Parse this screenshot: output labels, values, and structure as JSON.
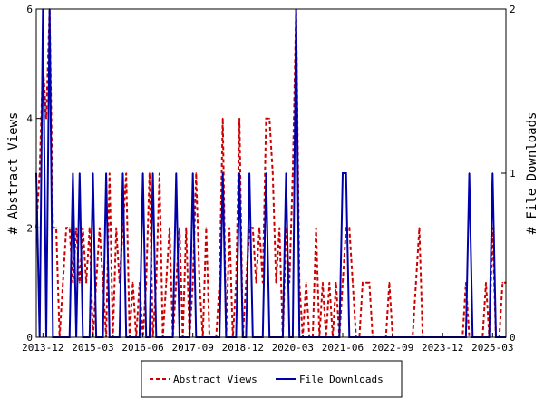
{
  "chart_data": {
    "type": "line",
    "ylabel_left": "# Abstract Views",
    "ylabel_right": "# File Downloads",
    "x_range": [
      "2013-10",
      "2025-07"
    ],
    "x_ticks": [
      "2013-12",
      "2015-03",
      "2016-06",
      "2017-09",
      "2018-12",
      "2020-03",
      "2021-06",
      "2022-09",
      "2023-12",
      "2025-03"
    ],
    "y_left": {
      "min": 0,
      "max": 6,
      "ticks": [
        "0",
        "2",
        "4",
        "6"
      ]
    },
    "y_right": {
      "min": 0,
      "max": 2,
      "ticks": [
        "0",
        "1",
        "2"
      ]
    },
    "legend": {
      "placement": "bottom"
    },
    "series": [
      {
        "name": "Abstract Views",
        "axis": "left",
        "color": "#cc0000",
        "dash": "dashed",
        "points": [
          [
            "2013-10",
            2
          ],
          [
            "2013-11",
            3
          ],
          [
            "2013-12",
            5
          ],
          [
            "2014-01",
            4
          ],
          [
            "2014-02",
            6
          ],
          [
            "2014-03",
            2
          ],
          [
            "2014-04",
            2
          ],
          [
            "2014-05",
            0
          ],
          [
            "2014-06",
            1
          ],
          [
            "2014-07",
            2
          ],
          [
            "2014-08",
            2
          ],
          [
            "2014-09",
            1
          ],
          [
            "2014-10",
            2
          ],
          [
            "2014-11",
            1
          ],
          [
            "2014-12",
            2
          ],
          [
            "2015-01",
            1
          ],
          [
            "2015-02",
            2
          ],
          [
            "2015-03",
            0
          ],
          [
            "2015-04",
            1
          ],
          [
            "2015-05",
            2
          ],
          [
            "2015-06",
            1
          ],
          [
            "2015-07",
            0
          ],
          [
            "2015-08",
            3
          ],
          [
            "2015-09",
            0
          ],
          [
            "2015-10",
            2
          ],
          [
            "2015-11",
            1
          ],
          [
            "2015-12",
            2
          ],
          [
            "2016-01",
            3
          ],
          [
            "2016-02",
            0
          ],
          [
            "2016-03",
            1
          ],
          [
            "2016-04",
            0
          ],
          [
            "2016-05",
            1
          ],
          [
            "2016-06",
            0
          ],
          [
            "2016-07",
            1
          ],
          [
            "2016-08",
            3
          ],
          [
            "2016-09",
            0
          ],
          [
            "2016-10",
            1
          ],
          [
            "2016-11",
            3
          ],
          [
            "2016-12",
            0
          ],
          [
            "2017-01",
            1
          ],
          [
            "2017-02",
            2
          ],
          [
            "2017-03",
            0
          ],
          [
            "2017-04",
            1
          ],
          [
            "2017-05",
            2
          ],
          [
            "2017-06",
            0
          ],
          [
            "2017-07",
            2
          ],
          [
            "2017-08",
            0
          ],
          [
            "2017-09",
            1
          ],
          [
            "2017-10",
            3
          ],
          [
            "2017-11",
            1
          ],
          [
            "2017-12",
            0
          ],
          [
            "2018-01",
            2
          ],
          [
            "2018-02",
            0
          ],
          [
            "2018-03",
            0
          ],
          [
            "2018-04",
            0
          ],
          [
            "2018-05",
            1
          ],
          [
            "2018-06",
            4
          ],
          [
            "2018-07",
            0
          ],
          [
            "2018-08",
            2
          ],
          [
            "2018-09",
            0
          ],
          [
            "2018-10",
            1
          ],
          [
            "2018-11",
            4
          ],
          [
            "2018-12",
            0
          ],
          [
            "2019-01",
            1
          ],
          [
            "2019-02",
            2
          ],
          [
            "2019-03",
            2
          ],
          [
            "2019-04",
            1
          ],
          [
            "2019-05",
            2
          ],
          [
            "2019-06",
            1
          ],
          [
            "2019-07",
            4
          ],
          [
            "2019-08",
            4
          ],
          [
            "2019-09",
            3
          ],
          [
            "2019-10",
            1
          ],
          [
            "2019-11",
            2
          ],
          [
            "2019-12",
            0
          ],
          [
            "2020-01",
            2
          ],
          [
            "2020-02",
            1
          ],
          [
            "2020-03",
            3
          ],
          [
            "2020-04",
            6
          ],
          [
            "2020-05",
            1
          ],
          [
            "2020-06",
            0
          ],
          [
            "2020-07",
            1
          ],
          [
            "2020-08",
            0
          ],
          [
            "2020-09",
            0
          ],
          [
            "2020-10",
            2
          ],
          [
            "2020-11",
            0
          ],
          [
            "2020-12",
            1
          ],
          [
            "2021-01",
            0
          ],
          [
            "2021-02",
            1
          ],
          [
            "2021-03",
            0
          ],
          [
            "2021-04",
            1
          ],
          [
            "2021-05",
            0
          ],
          [
            "2021-06",
            1
          ],
          [
            "2021-07",
            2
          ],
          [
            "2021-08",
            2
          ],
          [
            "2021-09",
            1
          ],
          [
            "2021-10",
            0
          ],
          [
            "2021-11",
            0
          ],
          [
            "2021-12",
            1
          ],
          [
            "2022-01",
            1
          ],
          [
            "2022-02",
            1
          ],
          [
            "2022-03",
            0
          ],
          [
            "2022-04",
            0
          ],
          [
            "2022-05",
            0
          ],
          [
            "2022-06",
            0
          ],
          [
            "2022-07",
            0
          ],
          [
            "2022-08",
            1
          ],
          [
            "2022-09",
            0
          ],
          [
            "2022-10",
            0
          ],
          [
            "2022-11",
            0
          ],
          [
            "2022-12",
            0
          ],
          [
            "2023-01",
            0
          ],
          [
            "2023-02",
            0
          ],
          [
            "2023-03",
            0
          ],
          [
            "2023-04",
            1
          ],
          [
            "2023-05",
            2
          ],
          [
            "2023-06",
            0
          ],
          [
            "2023-07",
            0
          ],
          [
            "2023-08",
            0
          ],
          [
            "2023-09",
            0
          ],
          [
            "2023-10",
            0
          ],
          [
            "2023-11",
            0
          ],
          [
            "2023-12",
            0
          ],
          [
            "2024-01",
            0
          ],
          [
            "2024-02",
            0
          ],
          [
            "2024-03",
            0
          ],
          [
            "2024-04",
            0
          ],
          [
            "2024-05",
            0
          ],
          [
            "2024-06",
            0
          ],
          [
            "2024-07",
            1
          ],
          [
            "2024-08",
            0
          ],
          [
            "2024-09",
            0
          ],
          [
            "2024-10",
            0
          ],
          [
            "2024-11",
            0
          ],
          [
            "2024-12",
            0
          ],
          [
            "2025-01",
            1
          ],
          [
            "2025-02",
            0
          ],
          [
            "2025-03",
            2
          ],
          [
            "2025-04",
            0
          ],
          [
            "2025-05",
            0
          ],
          [
            "2025-06",
            1
          ],
          [
            "2025-07",
            1
          ]
        ]
      },
      {
        "name": "File Downloads",
        "axis": "right",
        "color": "#0000aa",
        "dash": "solid",
        "points": [
          [
            "2013-10",
            1
          ],
          [
            "2013-11",
            0
          ],
          [
            "2013-12",
            2
          ],
          [
            "2014-01",
            0
          ],
          [
            "2014-02",
            2
          ],
          [
            "2014-03",
            0
          ],
          [
            "2014-04",
            0
          ],
          [
            "2014-05",
            0
          ],
          [
            "2014-06",
            0
          ],
          [
            "2014-07",
            0
          ],
          [
            "2014-08",
            0
          ],
          [
            "2014-09",
            1
          ],
          [
            "2014-10",
            0
          ],
          [
            "2014-11",
            1
          ],
          [
            "2014-12",
            0
          ],
          [
            "2015-01",
            0
          ],
          [
            "2015-02",
            0
          ],
          [
            "2015-03",
            1
          ],
          [
            "2015-04",
            0
          ],
          [
            "2015-05",
            0
          ],
          [
            "2015-06",
            0
          ],
          [
            "2015-07",
            1
          ],
          [
            "2015-08",
            0
          ],
          [
            "2015-09",
            0
          ],
          [
            "2015-10",
            0
          ],
          [
            "2015-11",
            0
          ],
          [
            "2015-12",
            1
          ],
          [
            "2016-01",
            0
          ],
          [
            "2016-02",
            0
          ],
          [
            "2016-03",
            0
          ],
          [
            "2016-04",
            0
          ],
          [
            "2016-05",
            0
          ],
          [
            "2016-06",
            1
          ],
          [
            "2016-07",
            0
          ],
          [
            "2016-08",
            0
          ],
          [
            "2016-09",
            1
          ],
          [
            "2016-10",
            0
          ],
          [
            "2016-11",
            0
          ],
          [
            "2016-12",
            0
          ],
          [
            "2017-01",
            0
          ],
          [
            "2017-02",
            0
          ],
          [
            "2017-03",
            0
          ],
          [
            "2017-04",
            1
          ],
          [
            "2017-05",
            0
          ],
          [
            "2017-06",
            0
          ],
          [
            "2017-07",
            0
          ],
          [
            "2017-08",
            0
          ],
          [
            "2017-09",
            1
          ],
          [
            "2017-10",
            0
          ],
          [
            "2017-11",
            0
          ],
          [
            "2017-12",
            0
          ],
          [
            "2018-01",
            0
          ],
          [
            "2018-02",
            0
          ],
          [
            "2018-03",
            0
          ],
          [
            "2018-04",
            0
          ],
          [
            "2018-05",
            0
          ],
          [
            "2018-06",
            1
          ],
          [
            "2018-07",
            0
          ],
          [
            "2018-08",
            0
          ],
          [
            "2018-09",
            0
          ],
          [
            "2018-10",
            0
          ],
          [
            "2018-11",
            1
          ],
          [
            "2018-12",
            0
          ],
          [
            "2019-01",
            0
          ],
          [
            "2019-02",
            1
          ],
          [
            "2019-03",
            0
          ],
          [
            "2019-04",
            0
          ],
          [
            "2019-05",
            0
          ],
          [
            "2019-06",
            0
          ],
          [
            "2019-07",
            1
          ],
          [
            "2019-08",
            0
          ],
          [
            "2019-09",
            0
          ],
          [
            "2019-10",
            0
          ],
          [
            "2019-11",
            0
          ],
          [
            "2019-12",
            0
          ],
          [
            "2020-01",
            1
          ],
          [
            "2020-02",
            0
          ],
          [
            "2020-03",
            0
          ],
          [
            "2020-04",
            2
          ],
          [
            "2020-05",
            0
          ],
          [
            "2020-06",
            0
          ],
          [
            "2020-07",
            0
          ],
          [
            "2020-08",
            0
          ],
          [
            "2020-09",
            0
          ],
          [
            "2020-10",
            0
          ],
          [
            "2020-11",
            0
          ],
          [
            "2020-12",
            0
          ],
          [
            "2021-01",
            0
          ],
          [
            "2021-02",
            0
          ],
          [
            "2021-03",
            0
          ],
          [
            "2021-04",
            0
          ],
          [
            "2021-05",
            0
          ],
          [
            "2021-06",
            1
          ],
          [
            "2021-07",
            1
          ],
          [
            "2021-08",
            0
          ],
          [
            "2021-09",
            0
          ],
          [
            "2021-10",
            0
          ],
          [
            "2021-11",
            0
          ],
          [
            "2021-12",
            0
          ],
          [
            "2022-01",
            0
          ],
          [
            "2022-02",
            0
          ],
          [
            "2022-03",
            0
          ],
          [
            "2022-04",
            0
          ],
          [
            "2022-05",
            0
          ],
          [
            "2022-06",
            0
          ],
          [
            "2022-07",
            0
          ],
          [
            "2022-08",
            0
          ],
          [
            "2022-09",
            0
          ],
          [
            "2022-10",
            0
          ],
          [
            "2022-11",
            0
          ],
          [
            "2022-12",
            0
          ],
          [
            "2023-01",
            0
          ],
          [
            "2023-02",
            0
          ],
          [
            "2023-03",
            0
          ],
          [
            "2023-04",
            0
          ],
          [
            "2023-05",
            0
          ],
          [
            "2023-06",
            0
          ],
          [
            "2023-07",
            0
          ],
          [
            "2023-08",
            0
          ],
          [
            "2023-09",
            0
          ],
          [
            "2023-10",
            0
          ],
          [
            "2023-11",
            0
          ],
          [
            "2023-12",
            0
          ],
          [
            "2024-01",
            0
          ],
          [
            "2024-02",
            0
          ],
          [
            "2024-03",
            0
          ],
          [
            "2024-04",
            0
          ],
          [
            "2024-05",
            0
          ],
          [
            "2024-06",
            0
          ],
          [
            "2024-07",
            0
          ],
          [
            "2024-08",
            1
          ],
          [
            "2024-09",
            0
          ],
          [
            "2024-10",
            0
          ],
          [
            "2024-11",
            0
          ],
          [
            "2024-12",
            0
          ],
          [
            "2025-01",
            0
          ],
          [
            "2025-02",
            0
          ],
          [
            "2025-03",
            1
          ],
          [
            "2025-04",
            0
          ],
          [
            "2025-05",
            0
          ],
          [
            "2025-06",
            0
          ],
          [
            "2025-07",
            0
          ]
        ]
      }
    ]
  }
}
